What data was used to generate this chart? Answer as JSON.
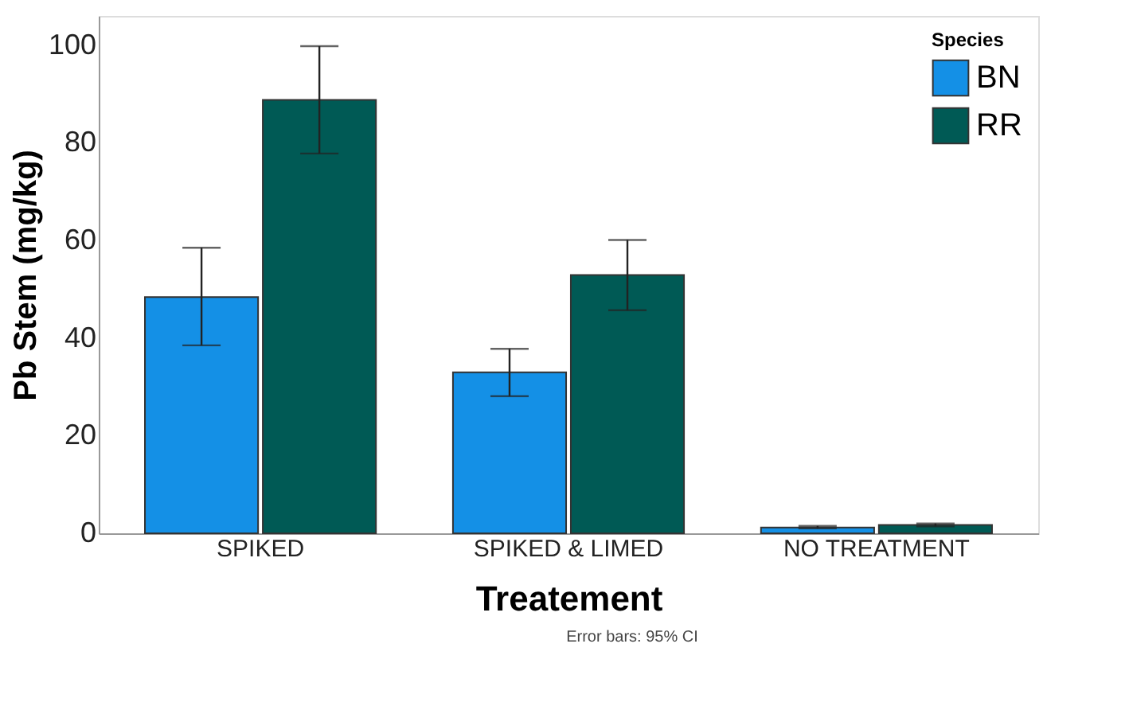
{
  "chart_data": {
    "type": "bar",
    "xlabel": "Treatement",
    "ylabel": "Pb Stem (mg/kg)",
    "legend_title": "Species",
    "categories": [
      "SPIKED",
      "SPIKED & LIMED",
      "NO TREATMENT"
    ],
    "series": [
      {
        "name": "BN",
        "color": "#1490e6",
        "values": [
          48.4,
          33.0,
          1.2
        ],
        "errors": [
          [
            38.5,
            58.5
          ],
          [
            28.1,
            37.8
          ],
          [
            1.0,
            1.5
          ]
        ]
      },
      {
        "name": "RR",
        "color": "#005a55",
        "values": [
          88.8,
          52.9,
          1.7
        ],
        "errors": [
          [
            77.8,
            99.8
          ],
          [
            45.7,
            60.1
          ],
          [
            1.4,
            2.0
          ]
        ]
      }
    ],
    "ylim": [
      0,
      106
    ],
    "yticks": [
      0,
      20,
      40,
      60,
      80,
      100
    ],
    "grid": false,
    "legend": "top right",
    "annotations": [
      "Error bars: 95% CI"
    ]
  }
}
